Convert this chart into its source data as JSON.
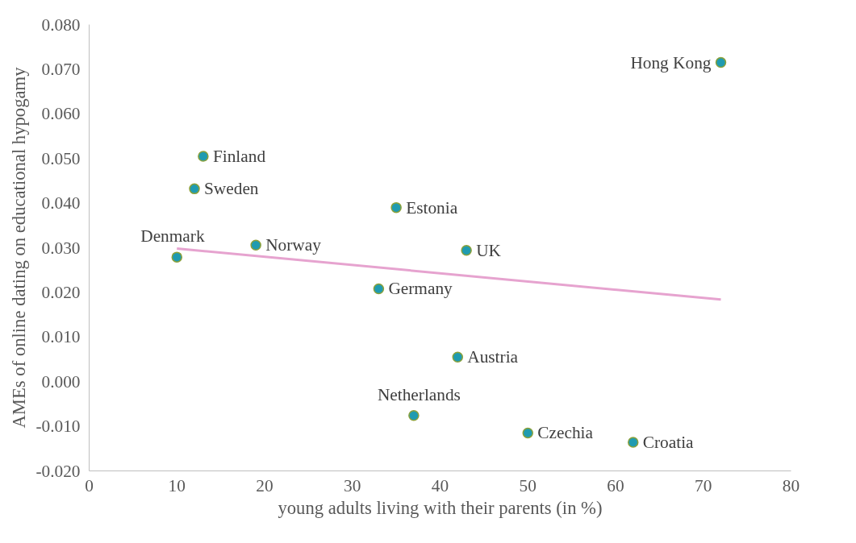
{
  "chart_data": {
    "type": "scatter",
    "xlabel": "young adults living with their parents (in %)",
    "ylabel": "AMEs of online dating on educational hypogamy",
    "xlim": [
      0,
      80
    ],
    "ylim": [
      -0.02,
      0.08
    ],
    "xticks": [
      0,
      10,
      20,
      30,
      40,
      50,
      60,
      70,
      80
    ],
    "yticks": [
      {
        "value": -0.02,
        "label": "-0.020"
      },
      {
        "value": -0.01,
        "label": "-0.010"
      },
      {
        "value": 0,
        "label": "0.000"
      },
      {
        "value": 0.01,
        "label": "0.010"
      },
      {
        "value": 0.02,
        "label": "0.020"
      },
      {
        "value": 0.03,
        "label": "0.030"
      },
      {
        "value": 0.04,
        "label": "0.040"
      },
      {
        "value": 0.05,
        "label": "0.050"
      },
      {
        "value": 0.06,
        "label": "0.060"
      },
      {
        "value": 0.07,
        "label": "0.070"
      },
      {
        "value": 0.08,
        "label": "0.080"
      }
    ],
    "grid": false,
    "marker": "circle",
    "series": [
      {
        "color": "#1f9bb0",
        "x": [
          72,
          13,
          12,
          35,
          10,
          19,
          43,
          33,
          42,
          37,
          50,
          62
        ],
        "values": [
          0.0715,
          0.0505,
          0.0432,
          0.039,
          0.0279,
          0.0306,
          0.0294,
          0.0208,
          0.0055,
          -0.0076,
          -0.0115,
          -0.0136
        ]
      },
      {
        "type": "line",
        "marker": "none",
        "color": "#e6a3cf",
        "x": [
          10,
          72
        ],
        "values": [
          0.0298,
          0.0184
        ]
      }
    ],
    "annotations": [
      {
        "text": "Hong Kong",
        "x": 72,
        "y": 0.0715
      },
      {
        "text": "Finland",
        "x": 13,
        "y": 0.0505
      },
      {
        "text": "Sweden",
        "x": 12,
        "y": 0.0432
      },
      {
        "text": "Estonia",
        "x": 35,
        "y": 0.039
      },
      {
        "text": "Denmark",
        "x": 10,
        "y": 0.0279
      },
      {
        "text": "Norway",
        "x": 19,
        "y": 0.0306
      },
      {
        "text": "UK",
        "x": 43,
        "y": 0.0294
      },
      {
        "text": "Germany",
        "x": 33,
        "y": 0.0208
      },
      {
        "text": "Austria",
        "x": 42,
        "y": 0.0055
      },
      {
        "text": "Netherlands",
        "x": 37,
        "y": -0.0076
      },
      {
        "text": "Czechia",
        "x": 50,
        "y": -0.0115
      },
      {
        "text": "Croatia",
        "x": 62,
        "y": -0.0136
      }
    ]
  }
}
